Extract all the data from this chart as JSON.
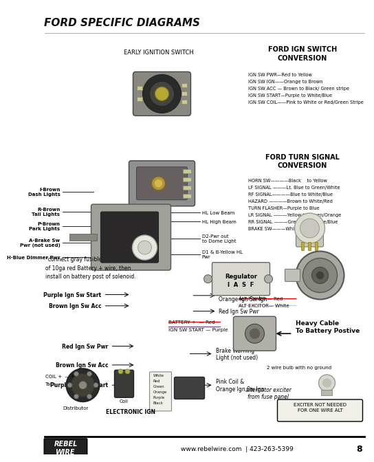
{
  "title": "FORD SPECIFIC DIAGRAMS",
  "bg": "#f5f5f0",
  "page_num": "8",
  "website": "www.rebelwire.com  | 423-263-5399",
  "ign_switch_title": "EARLY IGNITION SWITCH",
  "ford_ign_title": "FORD IGN SWITCH\nCONVERSION",
  "ford_ign_lines": [
    "IGN SW PWR—Red to Yellow",
    "IGN SW IGN——Orange to Brown",
    "IGN SW ACC — Brown to Black/ Green stripe",
    "IGN SW START—Purple to White/Blue",
    "IGN SW COIL——Pink to White or Red/Green Stripe"
  ],
  "ford_turn_title": "FORD TURN SIGNAL\nCONVERSION",
  "ford_turn_lines": [
    "HORN SW————Black    to Yellow",
    "LF SIGNAL ———Lt. Blue to Green/White",
    "RF SIGNAL————Blue to White/Blue",
    "HAZARD ————Brown to White/Red",
    "TURN FLASHER—Purple to Blue",
    "LR SIGNAL ———Yellow to Green/Orange",
    "RR SIGNAL ———Green to Orange/Blue",
    "BRAKE SW———White to Green"
  ],
  "ign1_left_labels": [
    [
      "Purple Ign Sw Start",
      0.845
    ],
    [
      "Brown Ign Sw Acc",
      0.8
    ],
    [
      "Red Ign Sw Pwr",
      0.758
    ]
  ],
  "ign1_right_labels": [
    [
      "Pink Coil &\nOrange Ign Sw Ign",
      0.845
    ],
    [
      "Brake Warning\nLight (not used)",
      0.775
    ]
  ],
  "ign2_left_labels": [
    [
      "Brown Ign Sw Acc",
      0.668
    ],
    [
      "Purple Ign Sw Start",
      0.643
    ]
  ],
  "ign2_right_labels": [
    [
      "Red Ign Sw Pwr",
      0.68
    ],
    [
      "Pink Coil &\nOrange Ign Sw Ign",
      0.645
    ]
  ],
  "hl_left_labels": [
    [
      "H-Blue Dimmer Pwr",
      0.56
    ],
    [
      "A-Brake Sw\nPwr (not used)",
      0.527
    ],
    [
      "P-Brown\nPark Lights",
      0.49
    ],
    [
      "R-Brown\nTail Lights",
      0.458
    ],
    [
      "I-Brown\nDash Lights",
      0.413
    ]
  ],
  "hl_right_labels": [
    [
      "D1 & B-Yellow HL\nPwr",
      0.553
    ],
    [
      "D2-Pwr out\nto Dome Light",
      0.518
    ],
    [
      "HL High Beam",
      0.48
    ],
    [
      "HL Low Beam",
      0.46
    ]
  ],
  "footer_note": "*connect gray fusible link to the end\nof 10ga red Battery + wire, then\ninstall on battery post of solenoid.",
  "reg_label": "Regulator\nI  A  S  F",
  "alt_power_lines": [
    "ALT POWER — Red",
    "ALT EXCITOR— White"
  ],
  "batt_labels": [
    "BATTERY +  — Red",
    "IGN SW START — Purple"
  ],
  "heavy_cable": "Heavy Cable\nTo Battery Postive",
  "coil_plus": "COIL +  — Pink",
  "tach_label": "Tach",
  "dist_label": "Distributor",
  "coil_label": "Coil",
  "elec_ign": "ELECTRONIC IGN",
  "bulb_label": "2 wire bulb with no ground",
  "alt_exciter": "alternator exciter\nfrom fuse panel",
  "exciter_box": "EXCITER NOT NEEDED\nFOR ONE WIRE ALT",
  "wire_colors_list": [
    "White",
    "Red",
    "Green",
    "Orange",
    "Purple",
    "Black"
  ],
  "rebel_text": "REBEL\nWIRE"
}
